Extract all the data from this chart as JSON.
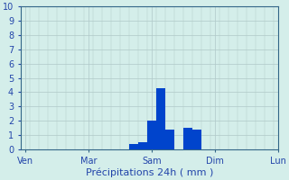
{
  "bar_values": [
    0,
    0,
    0,
    0,
    0,
    0,
    0,
    0,
    0,
    0,
    0,
    0,
    0.4,
    0.5,
    2.0,
    4.3,
    1.4,
    0,
    1.5,
    1.4,
    0,
    0,
    0,
    0,
    0,
    0,
    0,
    0
  ],
  "num_bars": 28,
  "ylim": [
    0,
    10
  ],
  "yticks": [
    0,
    1,
    2,
    3,
    4,
    5,
    6,
    7,
    8,
    9,
    10
  ],
  "xtick_positions": [
    0,
    7,
    14,
    21,
    28
  ],
  "xtick_labels": [
    "Ven",
    "Mar",
    "Sam",
    "Dim",
    "Lun"
  ],
  "bar_color": "#0044cc",
  "background_color": "#d4eeea",
  "grid_color": "#b0c8c8",
  "vline_color": "#88aab0",
  "xlabel": "Précipitations 24h ( mm )",
  "xlabel_color": "#2244aa",
  "tick_label_color": "#2244aa",
  "spine_color": "#336688",
  "ytick_fontsize": 7,
  "xtick_fontsize": 7,
  "xlabel_fontsize": 8
}
